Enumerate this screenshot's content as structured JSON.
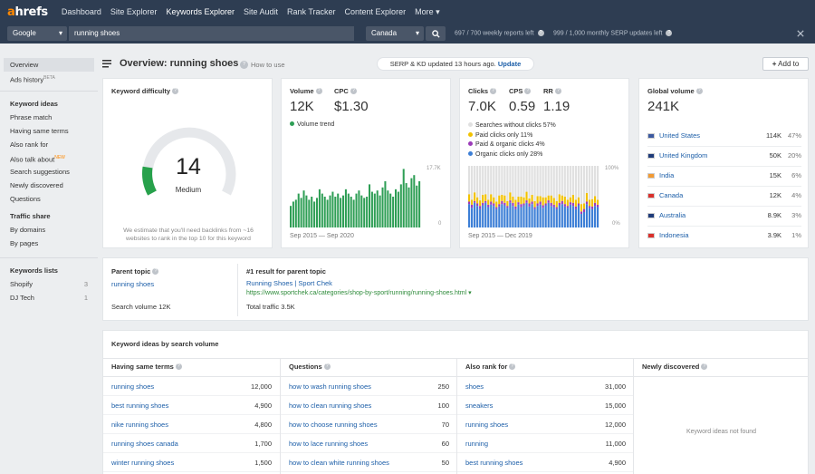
{
  "nav": {
    "logo_a": "a",
    "logo_rest": "hrefs",
    "items": [
      "Dashboard",
      "Site Explorer",
      "Keywords Explorer",
      "Site Audit",
      "Rank Tracker",
      "Content Explorer",
      "More"
    ],
    "more_caret": "▾"
  },
  "search": {
    "engine": "Google",
    "query": "running shoes",
    "country": "Canada",
    "weekly": "697 / 700 weekly reports left",
    "monthly": "999 / 1,000 monthly SERP updates left"
  },
  "sidebar": {
    "top": [
      {
        "label": "Overview"
      },
      {
        "label": "Ads history",
        "badge": "BETA"
      }
    ],
    "ideas_head": "Keyword ideas",
    "ideas": [
      {
        "label": "Phrase match"
      },
      {
        "label": "Having same terms"
      },
      {
        "label": "Also rank for"
      },
      {
        "label": "Also talk about",
        "badge": "NEW"
      },
      {
        "label": "Search suggestions"
      },
      {
        "label": "Newly discovered"
      },
      {
        "label": "Questions"
      }
    ],
    "traffic_head": "Traffic share",
    "traffic": [
      {
        "label": "By domains"
      },
      {
        "label": "By pages"
      }
    ],
    "lists_head": "Keywords lists",
    "lists": [
      {
        "label": "Shopify",
        "count": "3"
      },
      {
        "label": "DJ Tech",
        "count": "1"
      }
    ]
  },
  "header": {
    "title": "Overview: running shoes",
    "howto": "How to use",
    "serp_text": "SERP & KD updated 13 hours ago.",
    "update": "Update",
    "add_to": "Add to"
  },
  "kd": {
    "title": "Keyword difficulty",
    "value": "14",
    "label": "Medium",
    "level": 0.14,
    "note": "We estimate that you'll need backlinks from ~16 websites to rank in the top 10 for this keyword"
  },
  "volume": {
    "title": "Volume",
    "value": "12K",
    "cpc_title": "CPC",
    "cpc": "$1.30",
    "trend": "Volume trend",
    "ymax": "17.7K",
    "ymin": "0",
    "period": "Sep 2015 — Sep 2020",
    "color": "#2e9e55",
    "bars": [
      0.35,
      0.42,
      0.45,
      0.55,
      0.48,
      0.6,
      0.52,
      0.45,
      0.5,
      0.42,
      0.48,
      0.62,
      0.55,
      0.5,
      0.45,
      0.52,
      0.58,
      0.5,
      0.55,
      0.48,
      0.52,
      0.62,
      0.55,
      0.5,
      0.45,
      0.55,
      0.6,
      0.52,
      0.48,
      0.5,
      0.7,
      0.58,
      0.55,
      0.6,
      0.52,
      0.65,
      0.75,
      0.6,
      0.55,
      0.5,
      0.62,
      0.58,
      0.7,
      0.95,
      0.72,
      0.65,
      0.8,
      0.85,
      0.68,
      0.75
    ]
  },
  "clicks": {
    "title": "Clicks",
    "value": "7.0K",
    "cps_title": "CPS",
    "cps": "0.59",
    "rr_title": "RR",
    "rr": "1.19",
    "period": "Sep 2015 — Dec 2019",
    "ymax": "100%",
    "ymin": "0%",
    "legend": [
      {
        "label": "Searches without clicks 57%",
        "color": "#e0e0e0"
      },
      {
        "label": "Paid clicks only 11%",
        "color": "#f2c200"
      },
      {
        "label": "Paid & organic clicks 4%",
        "color": "#9b3bb8"
      },
      {
        "label": "Organic clicks only 28%",
        "color": "#3d7fd6"
      }
    ],
    "organic": [
      0.38,
      0.32,
      0.4,
      0.35,
      0.3,
      0.36,
      0.4,
      0.33,
      0.37,
      0.35,
      0.3,
      0.34,
      0.38,
      0.36,
      0.32,
      0.4,
      0.35,
      0.3,
      0.37,
      0.33,
      0.36,
      0.4,
      0.34,
      0.38,
      0.3,
      0.35,
      0.37,
      0.32,
      0.36,
      0.4,
      0.35,
      0.33,
      0.3,
      0.36,
      0.38,
      0.34,
      0.32,
      0.37,
      0.35,
      0.3,
      0.36,
      0.22,
      0.25,
      0.38,
      0.32,
      0.3,
      0.35,
      0.33
    ],
    "paid_organic": [
      0.04,
      0.05,
      0.03,
      0.04,
      0.05,
      0.04,
      0.03,
      0.04,
      0.05,
      0.04,
      0.03,
      0.04,
      0.05,
      0.04,
      0.03,
      0.04,
      0.05,
      0.04,
      0.04,
      0.05,
      0.03,
      0.04,
      0.05,
      0.04,
      0.03,
      0.04,
      0.05,
      0.04,
      0.03,
      0.04,
      0.05,
      0.04,
      0.03,
      0.04,
      0.05,
      0.04,
      0.03,
      0.04,
      0.05,
      0.04,
      0.03,
      0.04,
      0.05,
      0.04,
      0.03,
      0.04,
      0.05,
      0.04
    ],
    "paid": [
      0.12,
      0.08,
      0.14,
      0.1,
      0.09,
      0.13,
      0.11,
      0.08,
      0.12,
      0.1,
      0.09,
      0.14,
      0.1,
      0.12,
      0.08,
      0.13,
      0.1,
      0.11,
      0.09,
      0.12,
      0.1,
      0.14,
      0.08,
      0.11,
      0.1,
      0.12,
      0.09,
      0.13,
      0.1,
      0.08,
      0.12,
      0.11,
      0.1,
      0.14,
      0.09,
      0.12,
      0.1,
      0.08,
      0.13,
      0.11,
      0.1,
      0.12,
      0.09,
      0.14,
      0.1,
      0.12,
      0.11,
      0.08
    ]
  },
  "global": {
    "title": "Global volume",
    "value": "241K",
    "countries": [
      {
        "name": "United States",
        "vol": "114K",
        "pct": "47%",
        "flag": "us"
      },
      {
        "name": "United Kingdom",
        "vol": "50K",
        "pct": "20%",
        "flag": "uk"
      },
      {
        "name": "India",
        "vol": "15K",
        "pct": "6%",
        "flag": "in"
      },
      {
        "name": "Canada",
        "vol": "12K",
        "pct": "4%",
        "flag": "ca"
      },
      {
        "name": "Australia",
        "vol": "8.9K",
        "pct": "3%",
        "flag": "au"
      },
      {
        "name": "Indonesia",
        "vol": "3.9K",
        "pct": "1%",
        "flag": "id"
      }
    ]
  },
  "parent": {
    "title": "Parent topic",
    "topic": "running shoes",
    "search_volume": "Search volume 12K",
    "result_title": "#1 result for parent topic",
    "result_name": "Running Shoes | Sport Chek",
    "result_url": "https://www.sportchek.ca/categories/shop-by-sport/running/running-shoes.html",
    "traffic": "Total traffic 3.5K"
  },
  "ideas": {
    "title": "Keyword ideas by search volume",
    "cols": [
      {
        "title": "Having same terms",
        "rows": [
          [
            "running shoes",
            "12,000"
          ],
          [
            "best running shoes",
            "4,900"
          ],
          [
            "nike running shoes",
            "4,800"
          ],
          [
            "running shoes canada",
            "1,700"
          ],
          [
            "winter running shoes",
            "1,500"
          ]
        ]
      },
      {
        "title": "Questions",
        "rows": [
          [
            "how to wash running shoes",
            "250"
          ],
          [
            "how to clean running shoes",
            "100"
          ],
          [
            "how to choose running shoes",
            "70"
          ],
          [
            "how to lace running shoes",
            "60"
          ],
          [
            "how to clean white running shoes",
            "50"
          ]
        ]
      },
      {
        "title": "Also rank for",
        "rows": [
          [
            "shoes",
            "31,000"
          ],
          [
            "sneakers",
            "15,000"
          ],
          [
            "running shoes",
            "12,000"
          ],
          [
            "running",
            "11,000"
          ],
          [
            "best running shoes",
            "4,900"
          ]
        ]
      }
    ],
    "newly_title": "Newly discovered",
    "newly_empty": "Keyword ideas not found"
  }
}
